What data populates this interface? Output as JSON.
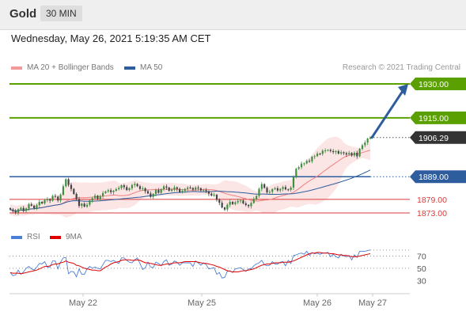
{
  "header": {
    "title": "Gold",
    "timeframe": "30 MIN"
  },
  "datetime": "Wednesday, May 26, 2021 5:19:35 AM CET",
  "legend": {
    "ma20": "MA 20 + Bollinger Bands",
    "ma50": "MA 50",
    "ma20_color": "#f29a9a",
    "ma50_color": "#2e5d9e"
  },
  "research": "Research © 2021 Trading Central",
  "rsi_legend": {
    "rsi": "RSI",
    "ma": "9MA",
    "rsi_color": "#4a7fd6",
    "ma_color": "#e10000"
  },
  "price_levels": [
    {
      "label": "1930.00",
      "value": 1930.0,
      "kind": "resistance",
      "color": "#5aa000"
    },
    {
      "label": "1915.00",
      "value": 1915.0,
      "kind": "resistance",
      "color": "#5aa000"
    },
    {
      "label": "1906.29",
      "value": 1906.29,
      "kind": "current",
      "color": "#333333"
    },
    {
      "label": "1889.00",
      "value": 1889.0,
      "kind": "pivot",
      "color": "#2e5d9e"
    },
    {
      "label": "1879.00",
      "value": 1879.0,
      "kind": "support",
      "color": "#d93b3b"
    },
    {
      "label": "1873.00",
      "value": 1873.0,
      "kind": "support",
      "color": "#d93b3b"
    }
  ],
  "chart_data": {
    "type": "candlestick",
    "x_labels": [
      "May 22",
      "May 25",
      "May 26",
      "May 27"
    ],
    "ylim": [
      1868,
      1935
    ],
    "close": [
      1874.5,
      1873.8,
      1873.2,
      1874.6,
      1875.2,
      1873.9,
      1875.0,
      1876.8,
      1876.2,
      1875.1,
      1876.4,
      1877.9,
      1877.2,
      1878.6,
      1879.1,
      1878.4,
      1880.5,
      1880.2,
      1878.5,
      1881.0,
      1884.8,
      1887.9,
      1885.4,
      1883.6,
      1881.4,
      1879.2,
      1876.1,
      1877.1,
      1875.8,
      1876.6,
      1878.5,
      1879.5,
      1880.6,
      1879.2,
      1880.4,
      1881.8,
      1882.5,
      1883.0,
      1882.2,
      1882.8,
      1883.5,
      1884.0,
      1885.2,
      1884.4,
      1883.1,
      1883.9,
      1885.3,
      1885.8,
      1884.8,
      1883.6,
      1883.9,
      1882.6,
      1881.6,
      1880.1,
      1881.4,
      1883.1,
      1881.9,
      1883.5,
      1884.7,
      1884.2,
      1882.8,
      1883.3,
      1884.3,
      1883.6,
      1882.2,
      1882.7,
      1883.6,
      1884.2,
      1884.0,
      1883.3,
      1884.2,
      1883.9,
      1882.9,
      1883.1,
      1882.6,
      1881.5,
      1880.7,
      1881.0,
      1878.8,
      1877.5,
      1875.4,
      1874.5,
      1876.6,
      1877.9,
      1876.9,
      1877.7,
      1878.3,
      1878.5,
      1877.2,
      1876.5,
      1876.0,
      1877.4,
      1879.2,
      1880.5,
      1883.6,
      1885.7,
      1884.1,
      1882.1,
      1882.3,
      1883.5,
      1883.9,
      1882.9,
      1883.6,
      1884.4,
      1883.4,
      1883.2,
      1884.2,
      1888.7,
      1892.5,
      1893.2,
      1894.8,
      1894.9,
      1896.0,
      1895.8,
      1897.8,
      1898.1,
      1899.2,
      1899.1,
      1900.5,
      1900.6,
      1900.8,
      1900.3,
      1899.9,
      1900.3,
      1899.2,
      1899.8,
      1899.4,
      1898.8,
      1899.5,
      1898.4,
      1899.6,
      1898.0,
      1901.3,
      1902.9,
      1904.1,
      1905.8,
      1906.3
    ]
  },
  "rsi_data": {
    "ticks": [
      70,
      50,
      30
    ],
    "rsi": [
      43,
      38,
      39,
      47,
      40,
      44,
      50,
      53,
      49,
      47,
      52,
      58,
      57,
      61,
      52,
      52,
      62,
      62,
      49,
      60,
      67,
      68,
      41,
      45,
      44,
      36,
      49,
      40,
      40,
      49,
      53,
      50,
      52,
      50,
      49,
      56,
      63,
      63,
      61,
      63,
      60,
      58,
      67,
      67,
      63,
      60,
      59,
      64,
      67,
      58,
      48,
      51,
      60,
      52,
      51,
      60,
      58,
      54,
      61,
      64,
      55,
      57,
      62,
      60,
      55,
      59,
      59,
      59,
      59,
      53,
      62,
      59,
      55,
      59,
      56,
      49,
      50,
      51,
      40,
      43,
      34,
      35,
      45,
      46,
      43,
      49,
      50,
      51,
      48,
      45,
      49,
      49,
      54,
      57,
      59,
      63,
      56,
      54,
      55,
      61,
      57,
      57,
      60,
      61,
      54,
      63,
      58,
      71,
      72,
      74,
      75,
      73,
      78,
      71,
      76,
      74,
      75,
      73,
      75,
      75,
      76,
      69,
      73,
      69,
      67,
      73,
      70,
      69,
      71,
      64,
      72,
      68,
      78,
      78,
      78,
      79,
      80
    ],
    "ma": [
      43,
      42,
      42,
      42,
      41,
      42,
      43,
      44,
      45,
      46,
      47,
      49,
      51,
      53,
      53,
      54,
      56,
      57,
      57,
      59,
      60,
      62,
      60,
      59,
      58,
      55,
      54,
      52,
      50,
      49,
      48,
      47,
      47,
      46,
      46,
      49,
      52,
      54,
      57,
      59,
      60,
      61,
      63,
      64,
      64,
      64,
      63,
      63,
      64,
      63,
      61,
      59,
      59,
      58,
      57,
      56,
      55,
      55,
      56,
      57,
      57,
      58,
      59,
      59,
      59,
      60,
      61,
      61,
      61,
      61,
      61,
      60,
      59,
      58,
      58,
      57,
      56,
      55,
      53,
      52,
      50,
      48,
      46,
      45,
      44,
      44,
      44,
      45,
      46,
      46,
      47,
      48,
      49,
      51,
      53,
      55,
      56,
      57,
      57,
      58,
      59,
      59,
      59,
      60,
      60,
      60,
      61,
      62,
      64,
      66,
      68,
      70,
      72,
      74,
      75,
      75,
      76,
      76,
      75,
      75,
      75,
      74,
      74,
      73,
      72,
      72,
      71,
      71,
      70,
      69,
      69,
      69,
      70,
      71,
      72,
      73,
      74
    ]
  }
}
